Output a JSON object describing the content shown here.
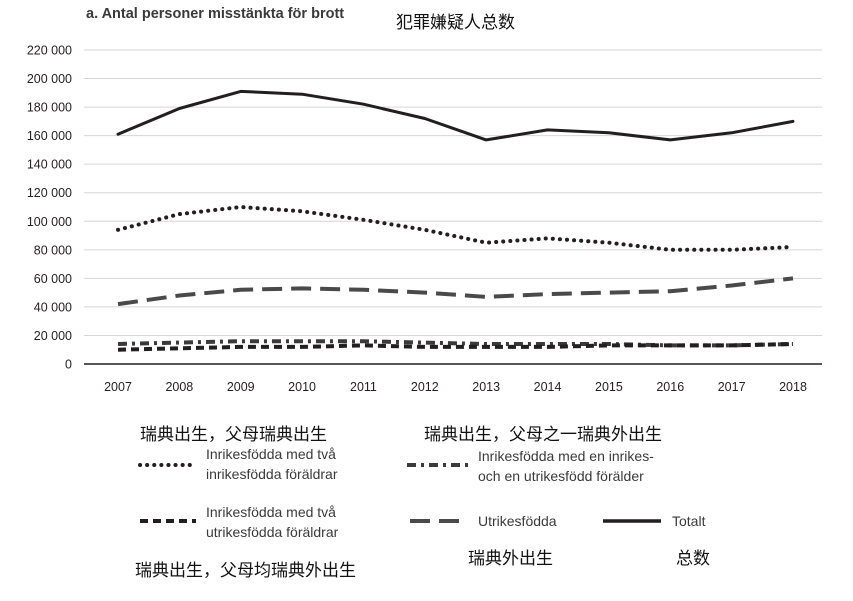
{
  "chart_data": {
    "type": "line",
    "title": "a. Antal personer misstänkta för brott",
    "title_cn": "犯罪嫌疑人总数",
    "x": [
      "2007",
      "2008",
      "2009",
      "2010",
      "2011",
      "2012",
      "2013",
      "2014",
      "2015",
      "2016",
      "2017",
      "2018"
    ],
    "ylim": [
      0,
      220000
    ],
    "yticks": [
      0,
      20000,
      40000,
      60000,
      80000,
      100000,
      120000,
      140000,
      160000,
      180000,
      200000,
      220000
    ],
    "ytick_labels": [
      "0",
      "20 000",
      "40 000",
      "60 000",
      "80 000",
      "100 000",
      "120 000",
      "140 000",
      "160 000",
      "180 000",
      "200 000",
      "220 000"
    ],
    "grid": true,
    "series": [
      {
        "name": "Totalt",
        "style": "solid",
        "values": [
          161000,
          179000,
          191000,
          189000,
          182000,
          172000,
          157000,
          164000,
          162000,
          157000,
          162000,
          170000
        ]
      },
      {
        "name": "Inrikesfödda med två inrikesfödda föräldrar",
        "style": "dotted",
        "values": [
          94000,
          105000,
          110000,
          107000,
          101000,
          94000,
          85000,
          88000,
          85000,
          80000,
          80000,
          82000
        ]
      },
      {
        "name": "Utrikesfödda",
        "style": "longdash",
        "values": [
          42000,
          48000,
          52000,
          53000,
          52000,
          50000,
          47000,
          49000,
          50000,
          51000,
          55000,
          60000
        ]
      },
      {
        "name": "Inrikesfödda med en inrikes- och en utrikesfödd förälder",
        "style": "dashdot",
        "values": [
          14000,
          15000,
          16000,
          16000,
          16000,
          15000,
          14000,
          14000,
          14000,
          13000,
          13000,
          14000
        ]
      },
      {
        "name": "Inrikesfödda med två utrikesfödda föräldrar",
        "style": "dash",
        "values": [
          10000,
          11000,
          12000,
          12000,
          13000,
          12000,
          12000,
          12000,
          13000,
          13000,
          13000,
          14000
        ]
      }
    ]
  },
  "legend": {
    "dotted_line1": "Inrikesfödda med två",
    "dotted_line2": "inrikesfödda föräldrar",
    "dotted_cn": "瑞典出生，父母瑞典出生",
    "dashdot_line1": "Inrikesfödda med en inrikes-",
    "dashdot_line2": "och en utrikesfödd förälder",
    "dashdot_cn": "瑞典出生，父母之一瑞典外出生",
    "dash_line1": "Inrikesfödda med två",
    "dash_line2": "utrikesfödda föräldrar",
    "dash_cn": "瑞典出生，父母均瑞典外出生",
    "longdash_label": "Utrikesfödda",
    "longdash_cn": "瑞典外出生",
    "solid_label": "Totalt",
    "solid_cn": "总数"
  }
}
